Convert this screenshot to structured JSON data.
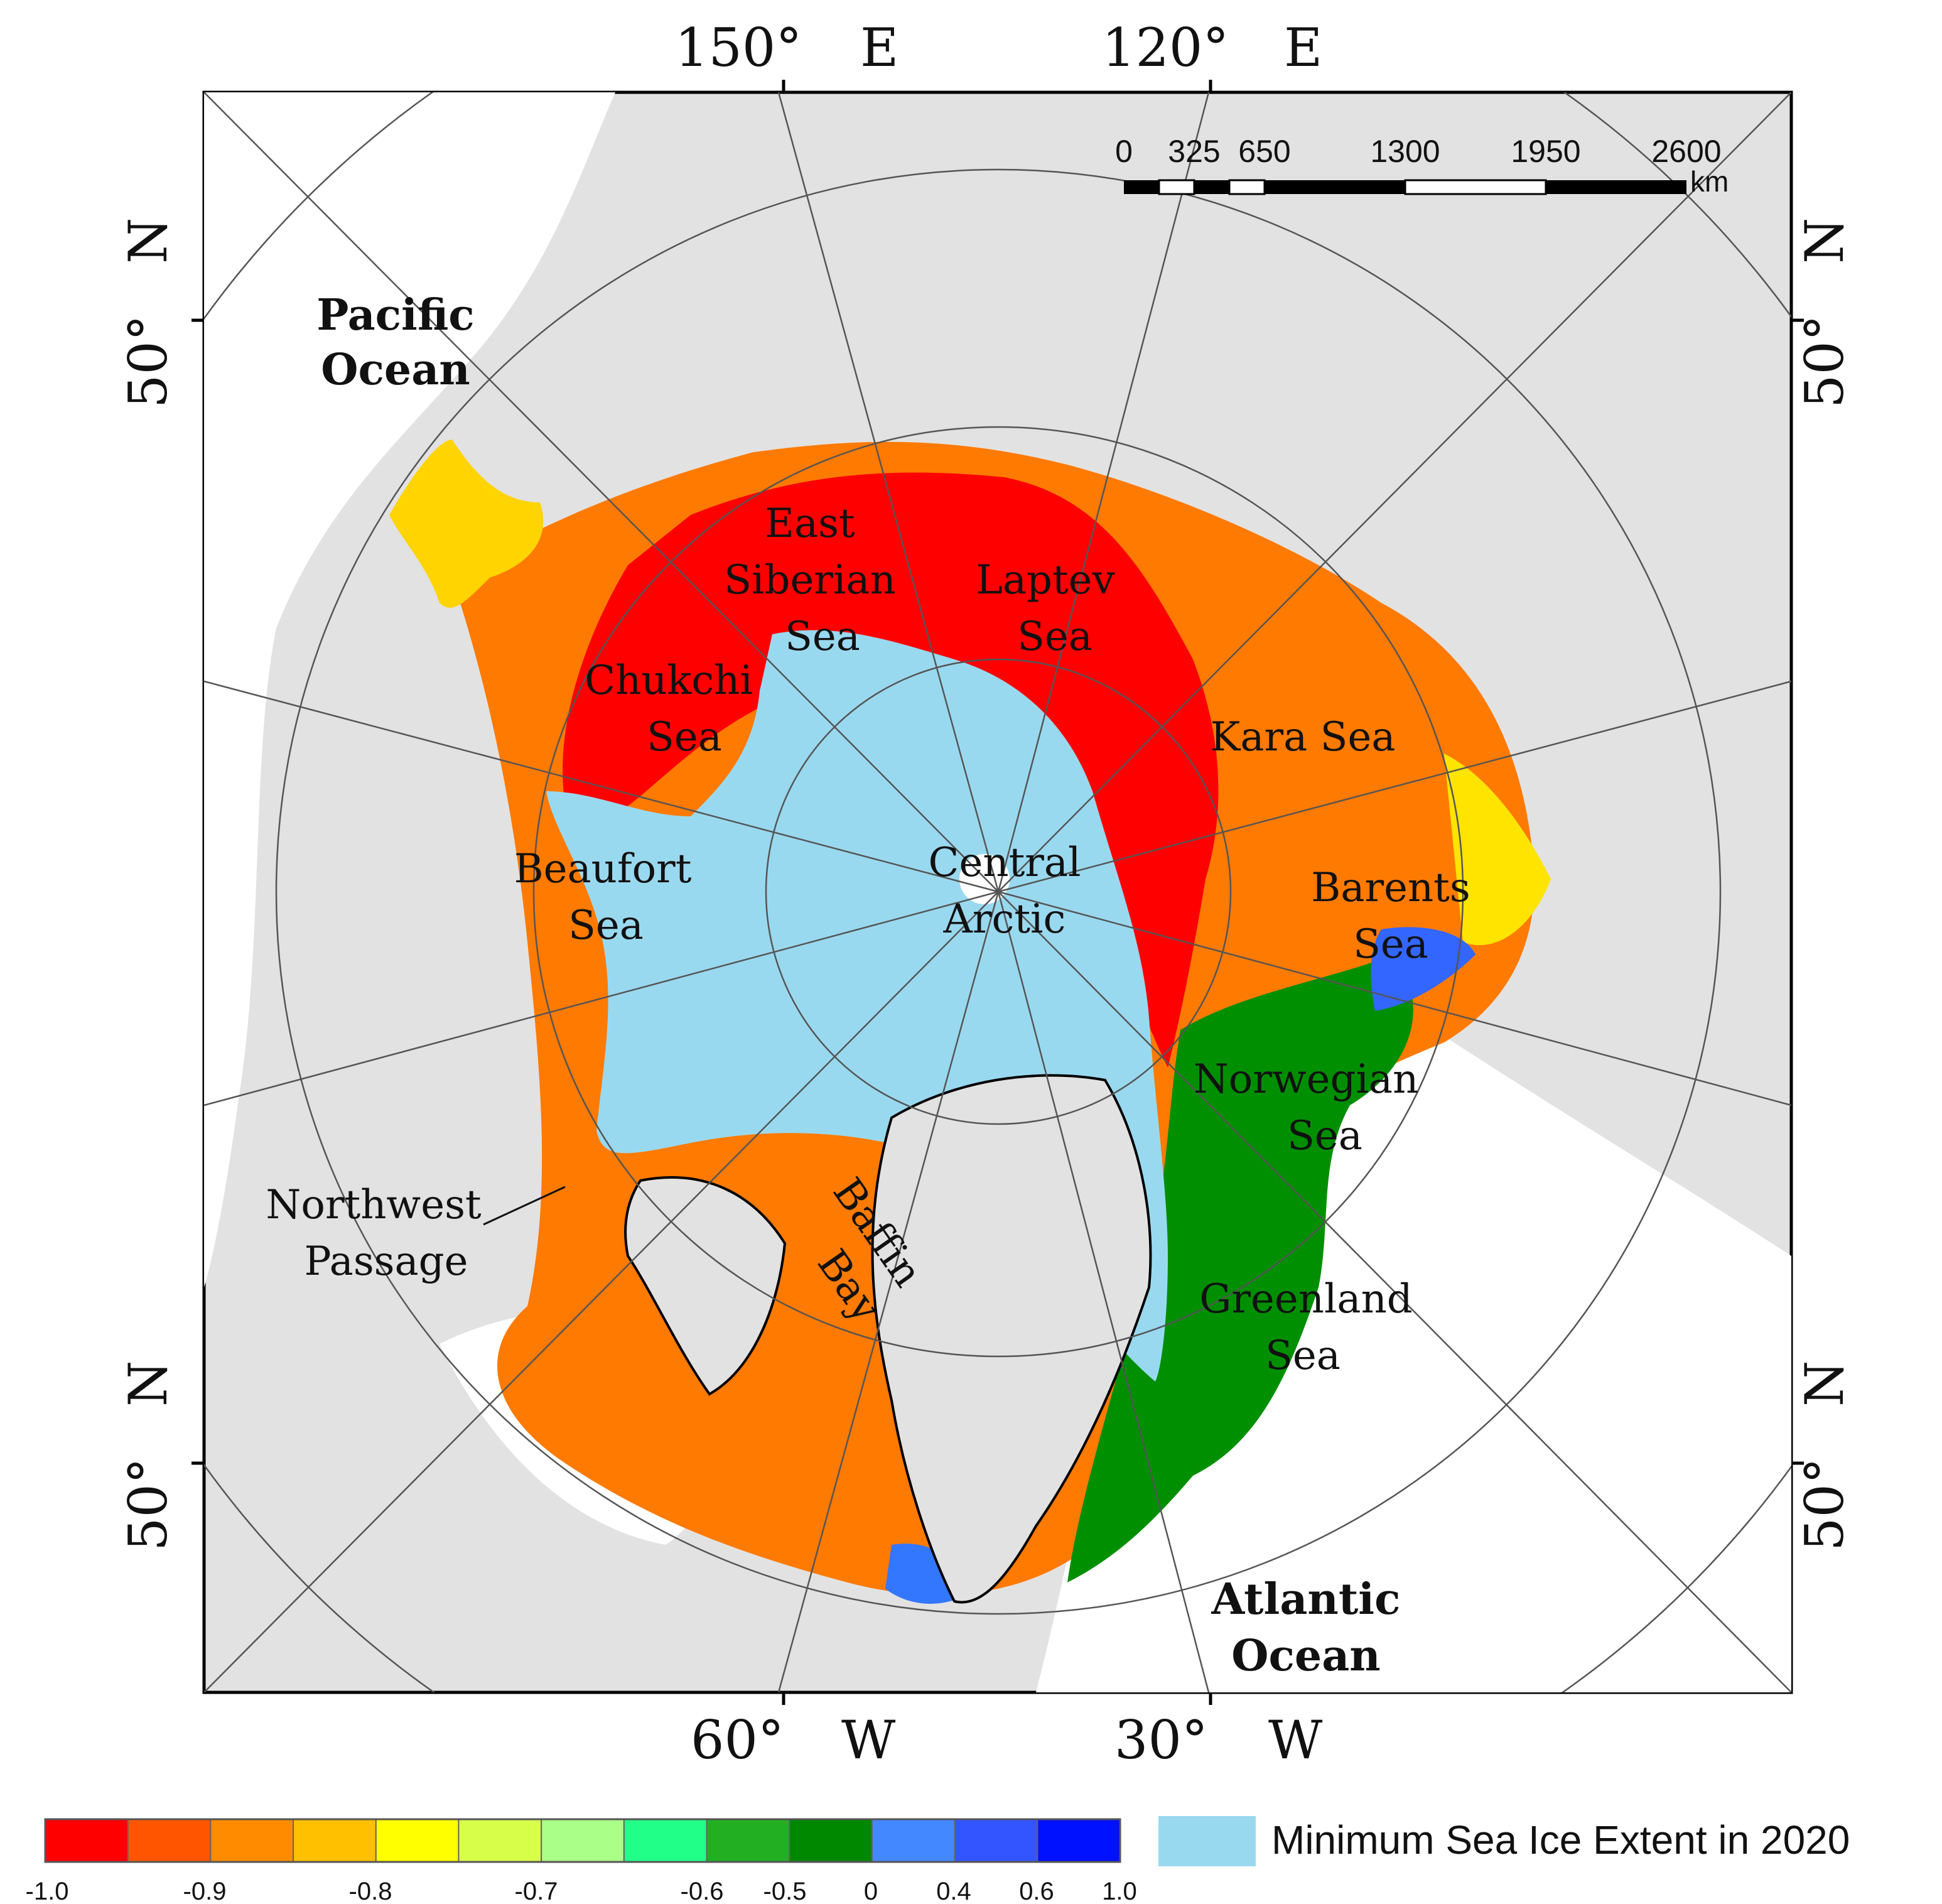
{
  "top_axis": [
    {
      "deg": "150°",
      "dir": "E"
    },
    {
      "deg": "120°",
      "dir": "E"
    }
  ],
  "bottom_axis": [
    {
      "deg": "60°",
      "dir": "W"
    },
    {
      "deg": "30°",
      "dir": "W"
    }
  ],
  "side_axis": [
    {
      "deg": "50°",
      "dir": "N"
    },
    {
      "deg": "50°",
      "dir": "N"
    }
  ],
  "scale_bar": {
    "ticks": [
      "0",
      "325",
      "650",
      "1300",
      "1950",
      "2600"
    ],
    "unit": "km"
  },
  "oceans": {
    "pacific": [
      "Pacific",
      "Ocean"
    ],
    "atlantic": [
      "Atlantic",
      "Ocean"
    ]
  },
  "regions": {
    "east_siberian": [
      "East",
      "Siberian",
      "Sea"
    ],
    "laptev": [
      "Laptev",
      "Sea"
    ],
    "chukchi": [
      "Chukchi",
      "Sea"
    ],
    "kara": [
      "Kara Sea"
    ],
    "central": [
      "Central",
      "Arctic"
    ],
    "beaufort": [
      "Beaufort",
      "Sea"
    ],
    "barents": [
      "Barents",
      "Sea"
    ],
    "norwegian": [
      "Norwegian",
      "Sea"
    ],
    "baffin": [
      "Baffin",
      "Bay"
    ],
    "greenland": [
      "Greenland",
      "Sea"
    ],
    "northwest": [
      "Northwest",
      "Passage"
    ]
  },
  "legend": {
    "colors": [
      "#ff0000",
      "#ff5500",
      "#ff8c00",
      "#ffc000",
      "#ffff00",
      "#d7ff4a",
      "#aaff88",
      "#22ff88",
      "#22b022",
      "#008800",
      "#4488ff",
      "#3355ff",
      "#0011ff"
    ],
    "tick_labels": [
      "-1.0",
      "-0.9",
      "-0.8",
      "-0.7",
      "-0.6",
      "-0.5",
      "0",
      "0.4",
      "0.6",
      "1.0"
    ],
    "extent_color": "#99d9f0",
    "extent_label": "Minimum Sea Ice Extent in 2020"
  }
}
